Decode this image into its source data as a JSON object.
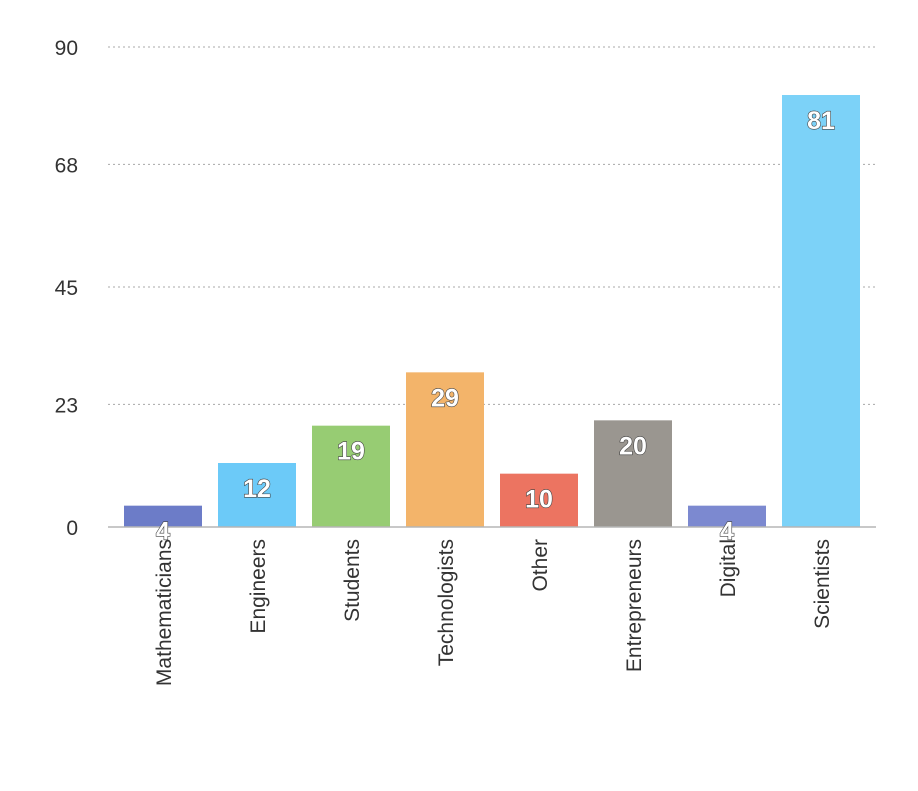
{
  "chart_data": {
    "type": "bar",
    "title": "",
    "xlabel": "",
    "ylabel": "",
    "categories": [
      "Mathematicians",
      "Engineers",
      "Students",
      "Technologists",
      "Other",
      "Entrepreneurs",
      "Digital",
      "Scientists"
    ],
    "values": [
      4,
      12,
      19,
      29,
      10,
      20,
      4,
      81
    ],
    "value_labels": [
      "4",
      "12",
      "19",
      "29",
      "10",
      "20",
      "4",
      "81"
    ],
    "colors": [
      "#6c7cc8",
      "#6ccaf8",
      "#97cc73",
      "#f3b46a",
      "#ec7461",
      "#9a9690",
      "#7c89d0",
      "#7cd2f8"
    ],
    "yticks": [
      0,
      23,
      45,
      68,
      90
    ],
    "ytick_labels": [
      "0",
      "23",
      "45",
      "68",
      "90"
    ],
    "ylim": [
      0,
      90
    ],
    "grid": true,
    "legend": "none"
  }
}
